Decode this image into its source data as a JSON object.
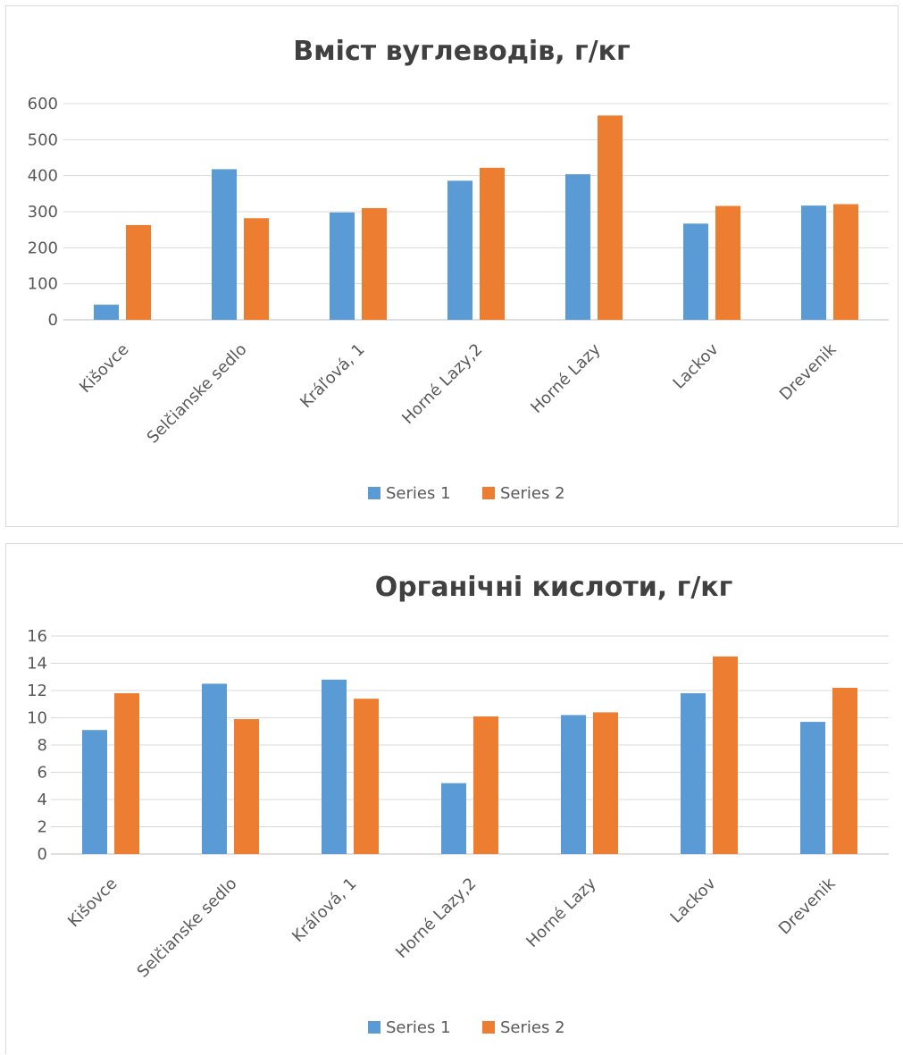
{
  "chart_data": [
    {
      "type": "bar",
      "title": "Вміст вуглеводів, г/кг",
      "categories": [
        "Kišovce",
        "Selčianske sedlo",
        "Kráľová, 1",
        "Horné Lazy,2",
        "Horné Lazy",
        "Lackov",
        "Drevenik"
      ],
      "series": [
        {
          "name": "Series 1",
          "color": "#5b9bd5",
          "values": [
            42,
            418,
            298,
            386,
            404,
            267,
            317
          ]
        },
        {
          "name": "Series 2",
          "color": "#ed7d31",
          "values": [
            263,
            282,
            310,
            422,
            567,
            316,
            321
          ]
        }
      ],
      "yticks": [
        "0",
        "100",
        "200",
        "300",
        "400",
        "500",
        "600"
      ],
      "ylim": [
        0,
        600
      ],
      "grid": true,
      "legend": "bottom"
    },
    {
      "type": "bar",
      "title": "Органічні кислоти, г/кг",
      "categories": [
        "Kišovce",
        "Selčianske sedlo",
        "Kráľová, 1",
        "Horné Lazy,2",
        "Horné Lazy",
        "Lackov",
        "Drevenik"
      ],
      "series": [
        {
          "name": "Series 1",
          "color": "#5b9bd5",
          "values": [
            9.1,
            12.5,
            12.8,
            5.2,
            10.2,
            11.8,
            9.7
          ]
        },
        {
          "name": "Series 2",
          "color": "#ed7d31",
          "values": [
            11.8,
            9.9,
            11.4,
            10.1,
            10.4,
            14.5,
            12.2
          ]
        }
      ],
      "yticks": [
        "0",
        "2",
        "4",
        "6",
        "8",
        "10",
        "12",
        "14",
        "16"
      ],
      "ylim": [
        0,
        16
      ],
      "grid": true,
      "legend": "bottom"
    }
  ]
}
